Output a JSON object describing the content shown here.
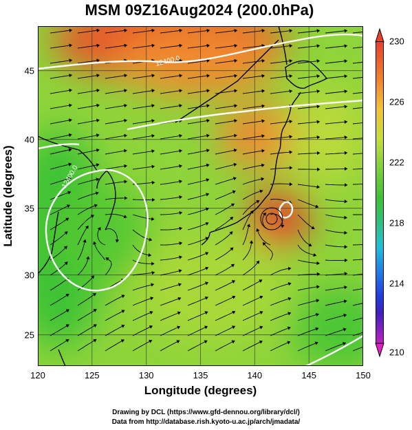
{
  "title": "MSM 09Z16Aug2024 (200.0hPa)",
  "axes": {
    "xlabel": "Longitude (degrees)",
    "ylabel": "Latitude  (degrees)",
    "xticks": [
      "120",
      "125",
      "130",
      "135",
      "140",
      "145",
      "150"
    ],
    "yticks": [
      "45",
      "40",
      "35",
      "30",
      "25"
    ],
    "xlim": [
      120,
      150
    ],
    "ylim": [
      22.4,
      47.6
    ]
  },
  "colorbar": {
    "labels": [
      "230",
      "226",
      "222",
      "218",
      "214",
      "210"
    ],
    "range": [
      210,
      230
    ]
  },
  "contour_labels": [
    "12400.0",
    "12400.0"
  ],
  "credits": {
    "line1": "Drawing by DCL (https://www.gfd-dennou.org/library/dcl/)",
    "line2": "Data from http://database.rish.kyoto-u.ac.jp/arch/jmadata/"
  },
  "colors": {
    "warm": "#e8402a",
    "mid": "#9ad43a",
    "cool": "#38c02e"
  }
}
